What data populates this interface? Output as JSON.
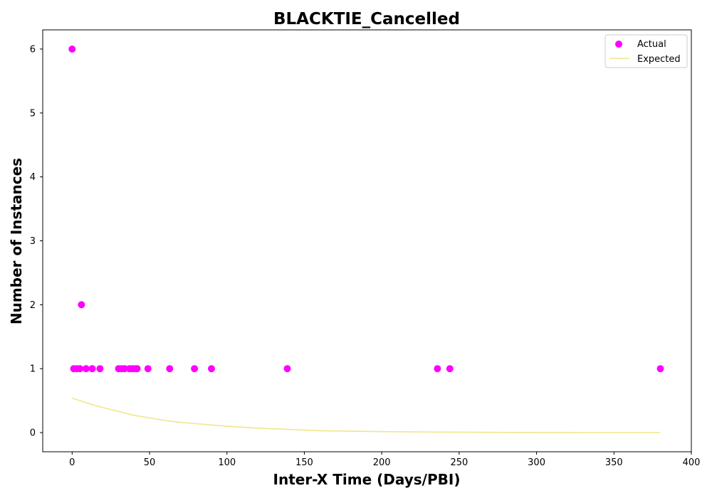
{
  "chart_data": {
    "type": "scatter",
    "title": "BLACKTIE_Cancelled",
    "xlabel": "Inter-X Time (Days/PBI)",
    "ylabel": "Number of Instances",
    "xlim": [
      -19,
      400
    ],
    "ylim": [
      -0.3,
      6.3
    ],
    "xticks": [
      0,
      50,
      100,
      150,
      200,
      250,
      300,
      350,
      400
    ],
    "yticks": [
      0,
      1,
      2,
      3,
      4,
      5,
      6
    ],
    "legend": {
      "placement": "top-right",
      "entries": [
        "Actual",
        "Expected"
      ]
    },
    "grid": false,
    "series": [
      {
        "name": "Actual",
        "kind": "scatter",
        "color": "#ff00ff",
        "x": [
          0,
          1,
          3,
          5,
          6,
          9,
          13,
          18,
          30,
          32,
          34,
          37,
          39,
          41,
          42,
          49,
          63,
          79,
          90,
          139,
          236,
          244,
          380
        ],
        "y": [
          6,
          1,
          1,
          1,
          2,
          1,
          1,
          1,
          1,
          1,
          1,
          1,
          1,
          1,
          1,
          1,
          1,
          1,
          1,
          1,
          1,
          1,
          1
        ]
      },
      {
        "name": "Expected",
        "kind": "line",
        "color": "#f0e68c",
        "x": [
          0,
          10,
          20,
          30,
          40,
          50,
          60,
          70,
          80,
          90,
          100,
          120,
          140,
          160,
          180,
          200,
          220,
          240,
          260,
          280,
          300,
          320,
          340,
          360,
          380
        ],
        "y": [
          0.54,
          0.46,
          0.39,
          0.33,
          0.27,
          0.23,
          0.19,
          0.16,
          0.14,
          0.12,
          0.1,
          0.07,
          0.05,
          0.03,
          0.022,
          0.015,
          0.01,
          0.007,
          0.005,
          0.003,
          0.002,
          0.0015,
          0.001,
          0.0007,
          0.0005
        ]
      }
    ]
  }
}
